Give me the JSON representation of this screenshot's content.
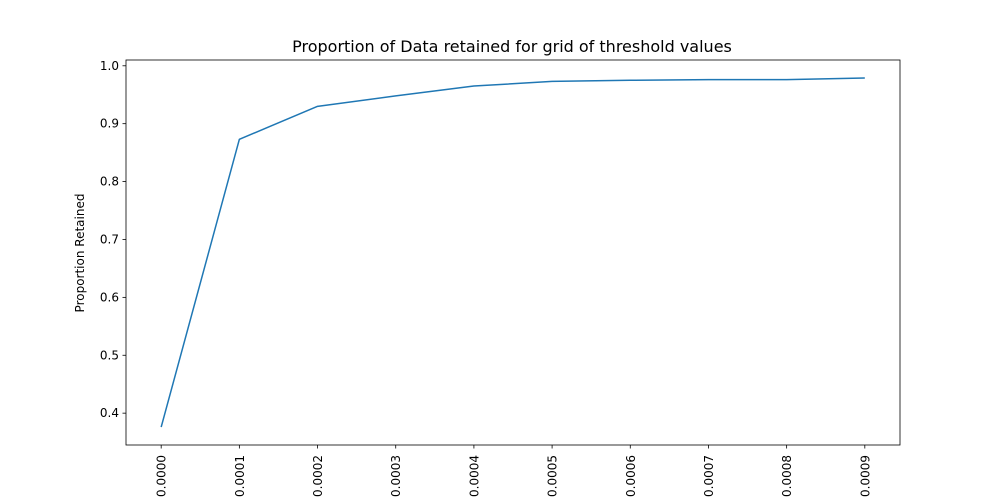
{
  "chart_data": {
    "type": "line",
    "title": "Proportion of Data retained for grid of threshold values",
    "xlabel": "",
    "ylabel": "Proportion Retained",
    "x": [
      0.0,
      0.0001,
      0.0002,
      0.0003,
      0.0004,
      0.0005,
      0.0006,
      0.0007,
      0.0008,
      0.0009
    ],
    "x_tick_labels": [
      "0.0000",
      "0.0001",
      "0.0002",
      "0.0003",
      "0.0004",
      "0.0005",
      "0.0006",
      "0.0007",
      "0.0008",
      "0.0009"
    ],
    "y_ticks": [
      0.4,
      0.5,
      0.6,
      0.7,
      0.8,
      0.9,
      1.0
    ],
    "y_tick_labels": [
      "0.4",
      "0.5",
      "0.6",
      "0.7",
      "0.8",
      "0.9",
      "1.0"
    ],
    "series": [
      {
        "values": [
          0.376,
          0.873,
          0.93,
          0.948,
          0.965,
          0.973,
          0.975,
          0.976,
          0.976,
          0.979
        ],
        "color": "#1f77b4"
      }
    ],
    "xlim": [
      -4.5e-05,
      0.000945
    ],
    "ylim": [
      0.345,
      1.01
    ],
    "grid": false,
    "legend": "none"
  }
}
